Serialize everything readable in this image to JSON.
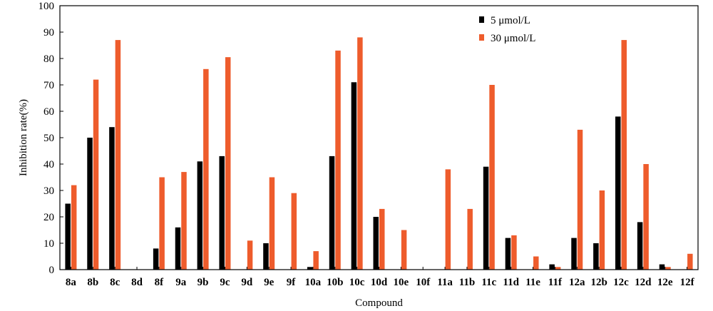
{
  "chart_data": {
    "type": "bar",
    "title": "",
    "xlabel": "Compound",
    "ylabel": "Inhibition rate(%)",
    "ylim": [
      0,
      100
    ],
    "yticks": [
      0,
      10,
      20,
      30,
      40,
      50,
      60,
      70,
      80,
      90,
      100
    ],
    "grid": false,
    "legend_position": "top-right",
    "categories": [
      "8a",
      "8b",
      "8c",
      "8d",
      "8f",
      "9a",
      "9b",
      "9c",
      "9d",
      "9e",
      "9f",
      "10a",
      "10b",
      "10c",
      "10d",
      "10e",
      "10f",
      "11a",
      "11b",
      "11c",
      "11d",
      "11e",
      "11f",
      "12a",
      "12b",
      "12c",
      "12d",
      "12e",
      "12f"
    ],
    "series": [
      {
        "name": "5 μmol/L",
        "color": "#000000",
        "values": [
          25,
          50,
          54,
          0,
          8,
          16,
          41,
          43,
          0,
          10,
          0,
          1,
          43,
          71,
          20,
          0,
          0,
          0,
          0,
          39,
          12,
          0,
          2,
          12,
          10,
          58,
          18,
          2,
          0
        ]
      },
      {
        "name": "30 μmol/L",
        "color": "#EE5C2C",
        "values": [
          32,
          72,
          87,
          0,
          35,
          37,
          76,
          80.5,
          11,
          35,
          29,
          7,
          83,
          88,
          23,
          15,
          0,
          38,
          23,
          70,
          13,
          5,
          1,
          53,
          30,
          87,
          40,
          1,
          6
        ]
      }
    ]
  }
}
